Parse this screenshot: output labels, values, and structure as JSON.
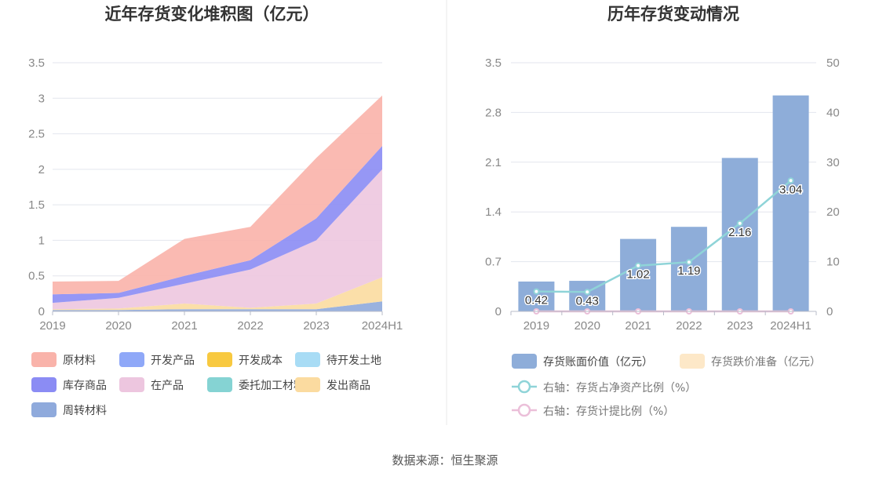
{
  "source": "数据来源：恒生聚源",
  "chart_data": [
    {
      "type": "area",
      "title": "近年存货变化堆积图（亿元）",
      "stacked": true,
      "categories": [
        "2019",
        "2020",
        "2021",
        "2022",
        "2023",
        "2024H1"
      ],
      "ylim": [
        0,
        3.5
      ],
      "yticks": [
        "0",
        "0.5",
        "1",
        "1.5",
        "2",
        "2.5",
        "3",
        "3.5"
      ],
      "grid": true,
      "legend_position": "bottom",
      "series": [
        {
          "name": "周转材料",
          "color": "#8faadc",
          "values": [
            0.02,
            0.02,
            0.03,
            0.03,
            0.03,
            0.14
          ]
        },
        {
          "name": "发出商品",
          "color": "#fbdba0",
          "values": [
            0.01,
            0.02,
            0.08,
            0.02,
            0.08,
            0.34
          ]
        },
        {
          "name": "委托加工材料",
          "color": "#85d3d3",
          "values": [
            0.0,
            0.0,
            0.0,
            0.0,
            0.0,
            0.0
          ]
        },
        {
          "name": "在产品",
          "color": "#edc6df",
          "values": [
            0.09,
            0.15,
            0.28,
            0.54,
            0.89,
            1.52
          ]
        },
        {
          "name": "库存商品",
          "color": "#8b8cf4",
          "values": [
            0.12,
            0.07,
            0.11,
            0.13,
            0.31,
            0.33
          ]
        },
        {
          "name": "待开发土地",
          "color": "#a8dcf5",
          "values": [
            0.0,
            0.0,
            0.0,
            0.0,
            0.0,
            0.0
          ]
        },
        {
          "name": "开发成本",
          "color": "#f8c940",
          "values": [
            0.0,
            0.0,
            0.0,
            0.0,
            0.0,
            0.0
          ]
        },
        {
          "name": "开发产品",
          "color": "#8fa8f8",
          "values": [
            0.0,
            0.0,
            0.0,
            0.0,
            0.0,
            0.0
          ]
        },
        {
          "name": "原材料",
          "color": "#f9b3aa",
          "values": [
            0.18,
            0.17,
            0.52,
            0.47,
            0.85,
            0.71
          ]
        }
      ],
      "legend_order": [
        "原材料",
        "开发产品",
        "开发成本",
        "待开发土地",
        "库存商品",
        "在产品",
        "委托加工材料",
        "发出商品",
        "周转材料"
      ]
    },
    {
      "type": "bar",
      "title": "历年存货变动情况",
      "categories": [
        "2019",
        "2020",
        "2021",
        "2022",
        "2023",
        "2024H1"
      ],
      "ylim": [
        0,
        3.5
      ],
      "yticks": [
        "0",
        "0.7",
        "1.4",
        "2.1",
        "2.8",
        "3.5"
      ],
      "y2lim": [
        0,
        50
      ],
      "y2ticks": [
        "0",
        "10",
        "20",
        "30",
        "40",
        "50"
      ],
      "grid": true,
      "legend_position": "bottom",
      "series": [
        {
          "name": "存货账面价值（亿元）",
          "type": "bar",
          "axis": "left",
          "color": "#8eadd9",
          "values": [
            0.42,
            0.43,
            1.02,
            1.19,
            2.16,
            3.04
          ],
          "labels": [
            "0.42",
            "0.43",
            "1.02",
            "1.19",
            "2.16",
            "3.04"
          ]
        },
        {
          "name": "存货跌价准备（亿元）",
          "type": "bar",
          "axis": "left",
          "color": "#fde8c8",
          "values": [
            0,
            0,
            0,
            0,
            0,
            0
          ]
        },
        {
          "name": "右轴：存货占净资产比例（%）",
          "type": "line",
          "axis": "right",
          "color": "#8fd4d8",
          "values": [
            4.0,
            3.9,
            9.2,
            9.9,
            17.7,
            26.3
          ]
        },
        {
          "name": "右轴：存货计提比例（%）",
          "type": "line",
          "axis": "right",
          "color": "#ebbfd9",
          "values": [
            0,
            0,
            0,
            0,
            0,
            0
          ]
        }
      ]
    }
  ]
}
